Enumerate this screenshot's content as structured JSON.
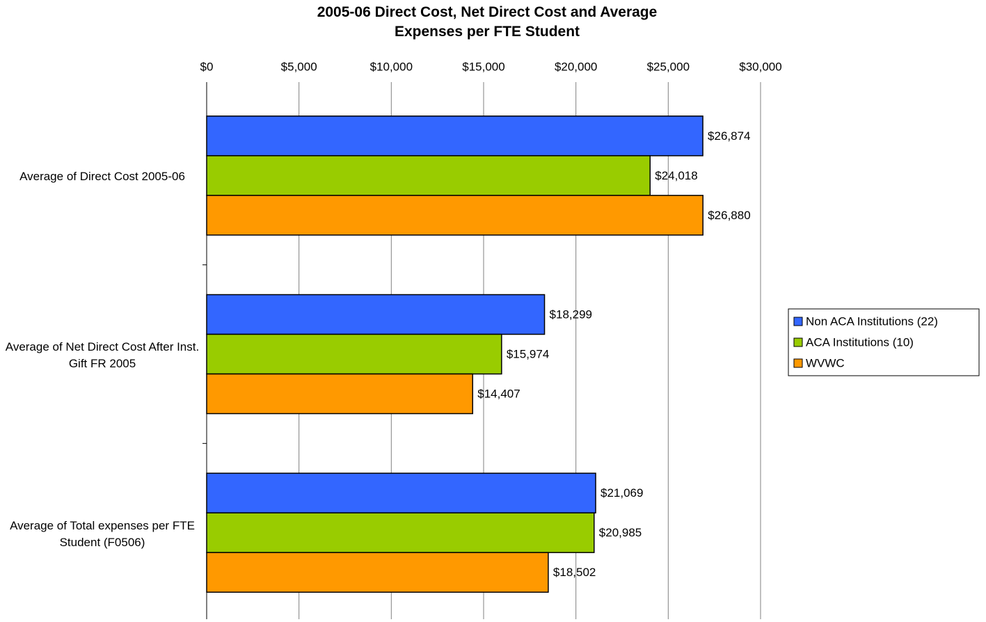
{
  "chart_data": {
    "type": "hbar",
    "title": "2005-06 Direct Cost, Net Direct Cost and Average Expenses per FTE Student",
    "categories": [
      "Average of Direct Cost 2005-06",
      "Average of Net Direct Cost After Inst. Gift FR 2005",
      "Average of Total expenses per FTE Student (F0506)"
    ],
    "series": [
      {
        "name": "Non ACA Institutions (22)",
        "color": "#3366ff",
        "values": [
          26874,
          18299,
          21069
        ],
        "value_labels": [
          "$26,874",
          "$18,299",
          "$21,069"
        ]
      },
      {
        "name": "ACA Institutions (10)",
        "color": "#99cc00",
        "values": [
          24018,
          15974,
          20985
        ],
        "value_labels": [
          "$24,018",
          "$15,974",
          "$20,985"
        ]
      },
      {
        "name": "WVWC",
        "color": "#ff9900",
        "values": [
          26880,
          14407,
          18502
        ],
        "value_labels": [
          "$26,880",
          "$14,407",
          "$18,502"
        ]
      }
    ],
    "xlim": [
      0,
      30000
    ],
    "xticks": [
      {
        "value": 0,
        "label": "$0"
      },
      {
        "value": 5000,
        "label": "$5,000"
      },
      {
        "value": 10000,
        "label": "$10,000"
      },
      {
        "value": 15000,
        "label": "$15,000"
      },
      {
        "value": 20000,
        "label": "$20,000"
      },
      {
        "value": 25000,
        "label": "$25,000"
      },
      {
        "value": 30000,
        "label": "$30,000"
      }
    ],
    "grid": true,
    "legend": "right"
  }
}
